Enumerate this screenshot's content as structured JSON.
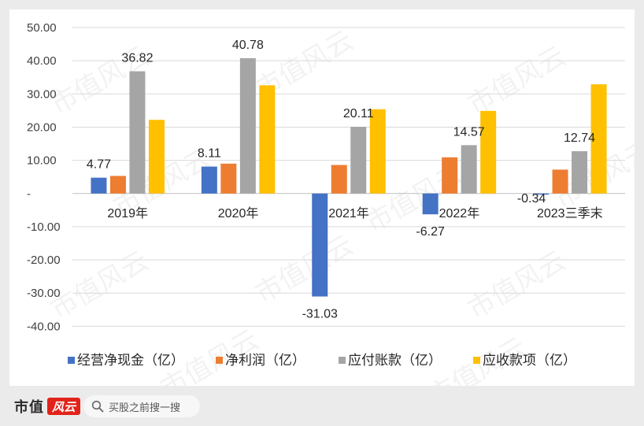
{
  "chart_data": {
    "type": "bar",
    "categories": [
      "2019年",
      "2020年",
      "2021年",
      "2022年",
      "2023三季末"
    ],
    "series": [
      {
        "name": "经营净现金（亿）",
        "color": "#4472c4",
        "values": [
          4.77,
          8.11,
          -31.03,
          -6.27,
          -0.34
        ],
        "labels": [
          "4.77",
          "8.11",
          "-31.03",
          "-6.27",
          "-0.34"
        ]
      },
      {
        "name": "净利润（亿）",
        "color": "#ed7d31",
        "values": [
          5.3,
          9.0,
          8.6,
          10.9,
          7.2
        ]
      },
      {
        "name": "应付账款（亿）",
        "color": "#a5a5a5",
        "values": [
          36.82,
          40.78,
          20.11,
          14.57,
          12.74
        ],
        "labels": [
          "36.82",
          "40.78",
          "20.11",
          "14.57",
          "12.74"
        ]
      },
      {
        "name": "应收款项（亿）",
        "color": "#ffc000",
        "values": [
          22.2,
          32.6,
          25.4,
          24.9,
          32.9
        ]
      }
    ],
    "ylim": [
      -40,
      50
    ],
    "yticks": [
      50,
      40,
      30,
      20,
      10,
      0,
      -10,
      -20,
      -30,
      -40
    ],
    "ytick_labels": [
      "50.00",
      "40.00",
      "30.00",
      "20.00",
      "10.00",
      "-",
      "-10.00",
      "-20.00",
      "-30.00",
      "-40.00"
    ],
    "grid": true,
    "legend_position": "bottom",
    "watermark": "市值风云"
  },
  "footer": {
    "brand": "市值",
    "brand_mark": "风云",
    "search_placeholder": "买股之前搜一搜",
    "search_icon": "search-icon"
  }
}
